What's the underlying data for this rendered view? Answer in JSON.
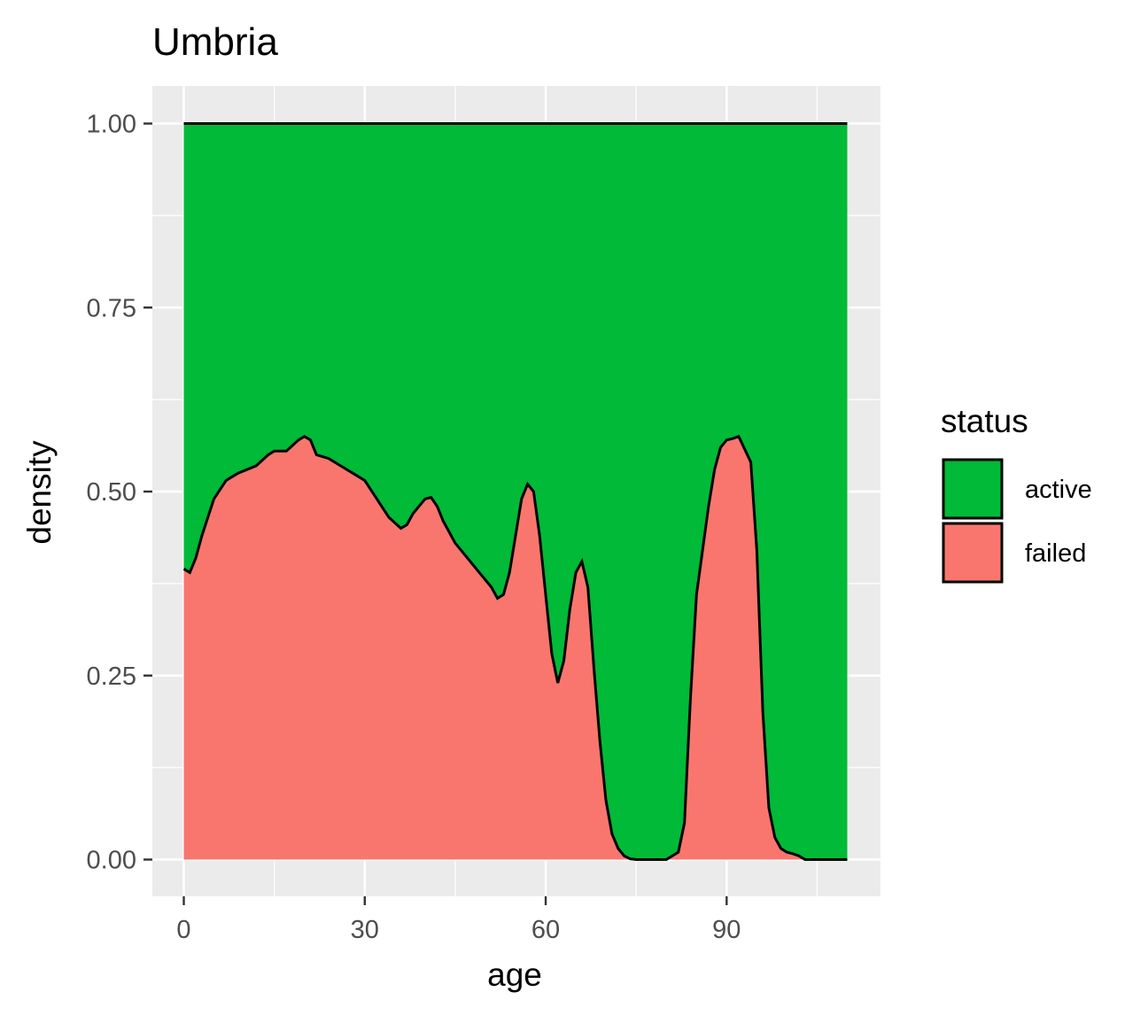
{
  "chart_data": {
    "type": "area",
    "stacking": "fill",
    "title": "Umbria",
    "xlabel": "age",
    "ylabel": "density",
    "xlim": [
      0,
      110
    ],
    "ylim": [
      0,
      1
    ],
    "x_ticks": [
      0,
      30,
      60,
      90
    ],
    "y_ticks": [
      0,
      0.25,
      0.5,
      0.75,
      1
    ],
    "x_tick_labels": [
      "0",
      "30",
      "60",
      "90"
    ],
    "y_tick_labels": [
      "0.00",
      "0.25",
      "0.50",
      "0.75",
      "1.00"
    ],
    "grid": true,
    "legend": {
      "title": "status",
      "position": "right",
      "entries": [
        {
          "name": "active",
          "color": "#00BA38"
        },
        {
          "name": "failed",
          "color": "#F8766D"
        }
      ]
    },
    "series": [
      {
        "name": "failed",
        "color": "#F8766D",
        "x": [
          0,
          1,
          2,
          3,
          5,
          7,
          9,
          12,
          14,
          15,
          17,
          19,
          20,
          21,
          22,
          24,
          26,
          28,
          30,
          32,
          34,
          36,
          37,
          38,
          40,
          41,
          42,
          43,
          45,
          47,
          49,
          51,
          52,
          53,
          54,
          55,
          56,
          57,
          58,
          59,
          60,
          61,
          62,
          63,
          64,
          65,
          66,
          67,
          68,
          69,
          70,
          71,
          72,
          73,
          74,
          75,
          76,
          77,
          78,
          80,
          82,
          83,
          84,
          85,
          86,
          87,
          88,
          89,
          90,
          91,
          92,
          94,
          95,
          96,
          97,
          98,
          99,
          100,
          101,
          102,
          103,
          104,
          105,
          107,
          110
        ],
        "values": [
          0.395,
          0.39,
          0.41,
          0.44,
          0.49,
          0.515,
          0.525,
          0.535,
          0.55,
          0.555,
          0.555,
          0.57,
          0.575,
          0.57,
          0.55,
          0.545,
          0.535,
          0.525,
          0.515,
          0.49,
          0.465,
          0.45,
          0.455,
          0.47,
          0.49,
          0.492,
          0.48,
          0.46,
          0.43,
          0.41,
          0.39,
          0.37,
          0.355,
          0.36,
          0.39,
          0.44,
          0.49,
          0.51,
          0.5,
          0.44,
          0.36,
          0.28,
          0.24,
          0.27,
          0.34,
          0.39,
          0.405,
          0.37,
          0.26,
          0.16,
          0.08,
          0.035,
          0.015,
          0.005,
          0.001,
          0.0,
          0.0,
          0.0,
          0.0,
          0.0,
          0.01,
          0.05,
          0.22,
          0.36,
          0.42,
          0.48,
          0.53,
          0.56,
          0.57,
          0.572,
          0.575,
          0.54,
          0.42,
          0.2,
          0.07,
          0.03,
          0.015,
          0.01,
          0.008,
          0.005,
          0.0,
          0.0,
          0.0,
          0.0,
          0.0
        ]
      },
      {
        "name": "active",
        "color": "#00BA38",
        "note_values": "fills remainder to 1.00 (stacked proportion)"
      }
    ]
  }
}
